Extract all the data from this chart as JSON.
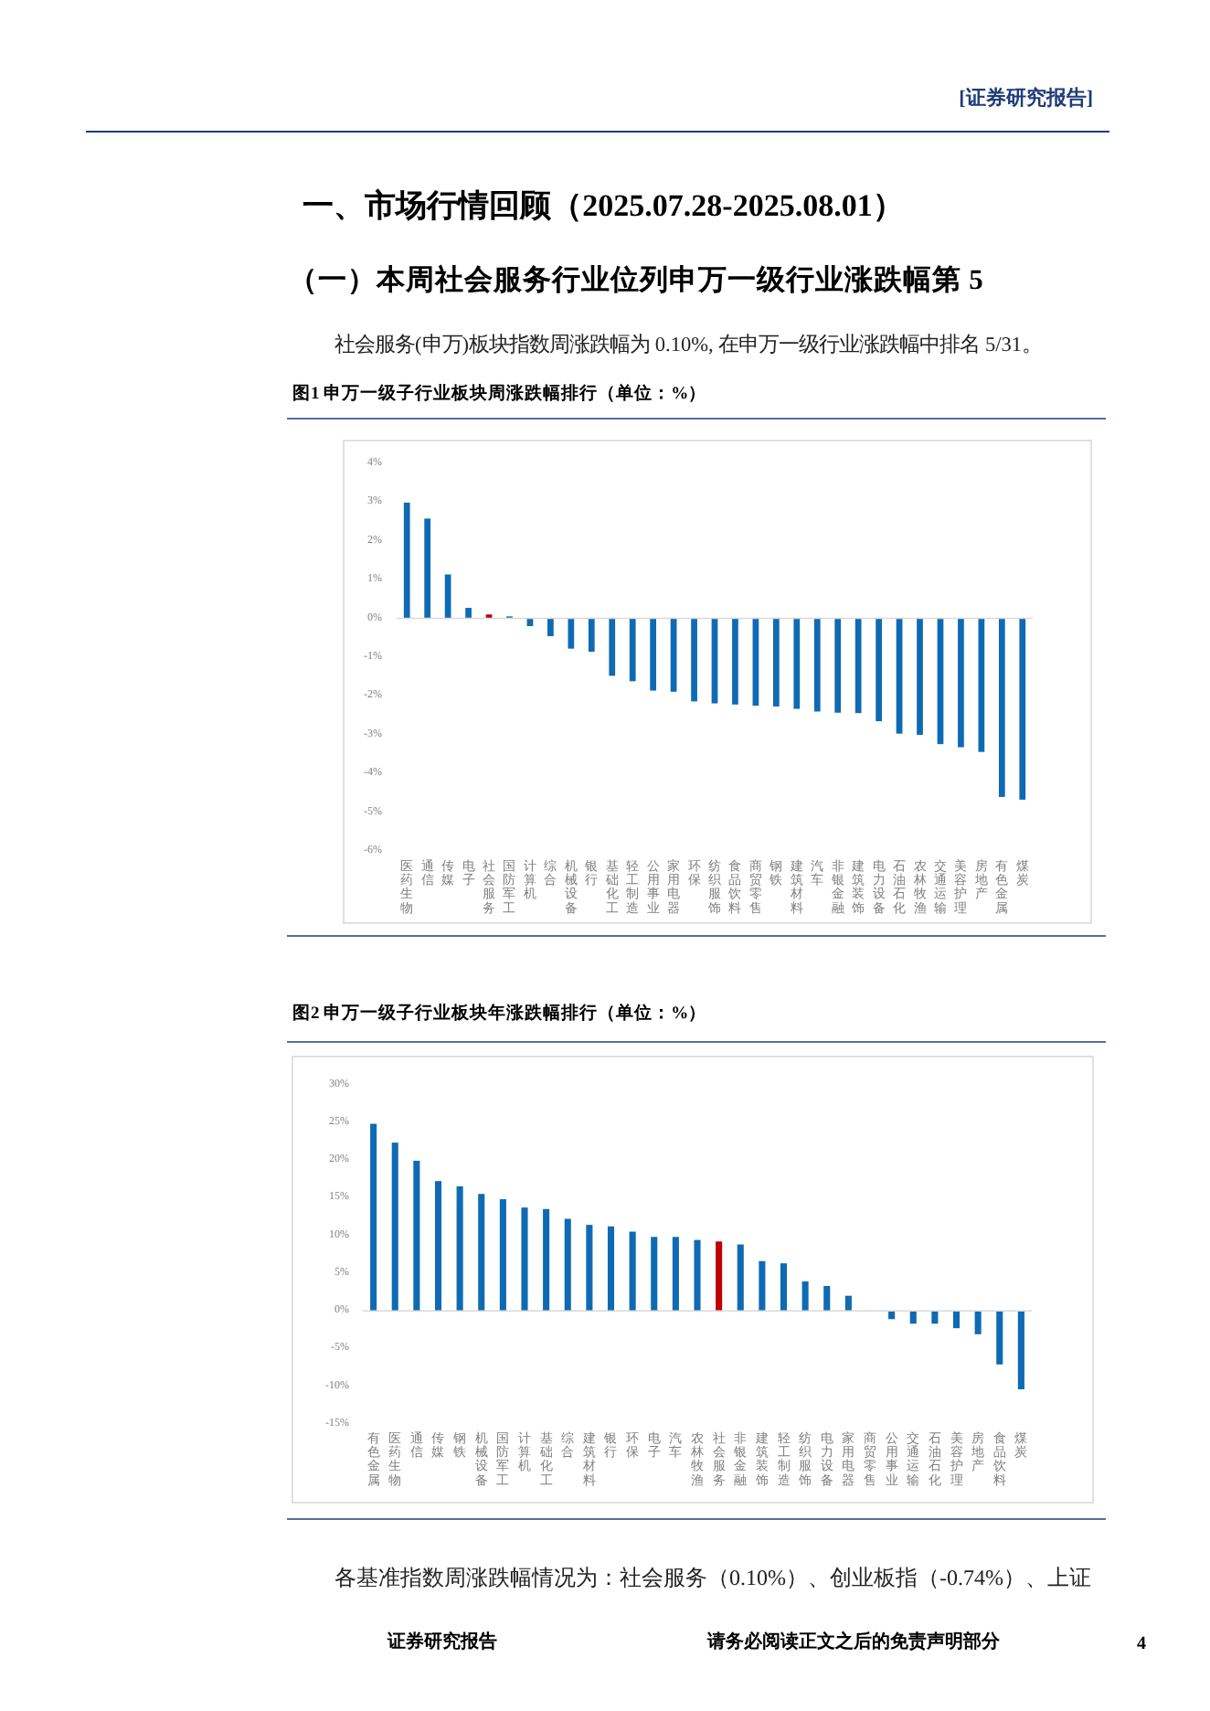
{
  "chart_data": [
    {
      "type": "bar",
      "title": "图1 申万一级子行业板块周涨跌幅排行（单位：%）",
      "annotations": [
        "[证券研究报告]",
        "一、市场行情回顾（2025.07.28-2025.08.01）",
        "（一）本周社会服务行业位列申万一级行业涨跌幅第 5",
        "社会服务(申万)板块指数周涨跌幅为 0.10%, 在申万一级行业涨跌幅中排名 5/31。"
      ],
      "categories": [
        "医药生物",
        "通信",
        "传媒",
        "电子",
        "社会服务",
        "国防军工",
        "计算机",
        "综合",
        "机械设备",
        "银行",
        "基础化工",
        "轻工制造",
        "公用事业",
        "家用电器",
        "环保",
        "纺织服饰",
        "食品饮料",
        "商贸零售",
        "钢铁",
        "建筑材料",
        "汽车",
        "非银金融",
        "建筑装饰",
        "电力设备",
        "石油石化",
        "农林牧渔",
        "交通运输",
        "美容护理",
        "房地产",
        "有色金属",
        "煤炭"
      ],
      "values": [
        2.98,
        2.57,
        1.13,
        0.27,
        0.1,
        0.05,
        -0.2,
        -0.46,
        -0.78,
        -0.86,
        -1.48,
        -1.62,
        -1.86,
        -1.89,
        -2.14,
        -2.19,
        -2.22,
        -2.25,
        -2.27,
        -2.33,
        -2.4,
        -2.43,
        -2.44,
        -2.65,
        -2.97,
        -3.0,
        -3.24,
        -3.32,
        -3.44,
        -4.6,
        -4.67
      ],
      "colors": [
        "#0f6ab4",
        "#0f6ab4",
        "#0f6ab4",
        "#0f6ab4",
        "#c00000",
        "#0f6ab4",
        "#0f6ab4",
        "#0f6ab4",
        "#0f6ab4",
        "#0f6ab4",
        "#0f6ab4",
        "#0f6ab4",
        "#0f6ab4",
        "#0f6ab4",
        "#0f6ab4",
        "#0f6ab4",
        "#0f6ab4",
        "#0f6ab4",
        "#0f6ab4",
        "#0f6ab4",
        "#0f6ab4",
        "#0f6ab4",
        "#0f6ab4",
        "#0f6ab4",
        "#0f6ab4",
        "#0f6ab4",
        "#0f6ab4",
        "#0f6ab4",
        "#0f6ab4",
        "#0f6ab4",
        "#0f6ab4"
      ],
      "ylim": [
        -6,
        4
      ],
      "yticks": [
        {
          "value": -6,
          "label": "-6%"
        },
        {
          "value": -5,
          "label": "-5%"
        },
        {
          "value": -4,
          "label": "-4%"
        },
        {
          "value": -3,
          "label": "-3%"
        },
        {
          "value": -2,
          "label": "-2%"
        },
        {
          "value": -1,
          "label": "-1%"
        },
        {
          "value": 0,
          "label": "0%"
        },
        {
          "value": 1,
          "label": "1%"
        },
        {
          "value": 2,
          "label": "2%"
        },
        {
          "value": 3,
          "label": "3%"
        },
        {
          "value": 4,
          "label": "4%"
        }
      ]
    },
    {
      "type": "bar",
      "title": "图2 申万一级子行业板块年涨跌幅排行（单位：%）",
      "annotations": [
        "各基准指数周涨跌幅情况为：社会服务（0.10%）、创业板指（-0.74%）、上证",
        "证券研究报告",
        "请务必阅读正文之后的免责声明部分",
        "4"
      ],
      "categories": [
        "有色金属",
        "医药生物",
        "通信",
        "传媒",
        "钢铁",
        "机械设备",
        "国防军工",
        "计算机",
        "基础化工",
        "综合",
        "建筑材料",
        "银行",
        "环保",
        "电子",
        "汽车",
        "农林牧渔",
        "社会服务",
        "非银金融",
        "建筑装饰",
        "轻工制造",
        "纺织服饰",
        "电力设备",
        "家用电器",
        "商贸零售",
        "公用事业",
        "交通运输",
        "石油石化",
        "美容护理",
        "房地产",
        "食品饮料",
        "煤炭"
      ],
      "values": [
        24.8,
        22.3,
        19.9,
        17.2,
        16.5,
        15.5,
        14.8,
        13.7,
        13.5,
        12.2,
        11.4,
        11.2,
        10.5,
        9.8,
        9.8,
        9.4,
        9.2,
        8.8,
        6.6,
        6.3,
        3.9,
        3.3,
        2.0,
        0,
        -1.1,
        -1.7,
        -1.7,
        -2.3,
        -3.1,
        -7.1,
        -10.4
      ],
      "colors": [
        "#0f6ab4",
        "#0f6ab4",
        "#0f6ab4",
        "#0f6ab4",
        "#0f6ab4",
        "#0f6ab4",
        "#0f6ab4",
        "#0f6ab4",
        "#0f6ab4",
        "#0f6ab4",
        "#0f6ab4",
        "#0f6ab4",
        "#0f6ab4",
        "#0f6ab4",
        "#0f6ab4",
        "#0f6ab4",
        "#c00000",
        "#0f6ab4",
        "#0f6ab4",
        "#0f6ab4",
        "#0f6ab4",
        "#0f6ab4",
        "#0f6ab4",
        "#0f6ab4",
        "#0f6ab4",
        "#0f6ab4",
        "#0f6ab4",
        "#0f6ab4",
        "#0f6ab4",
        "#0f6ab4",
        "#0f6ab4"
      ],
      "ylim": [
        -15,
        30
      ],
      "yticks": [
        {
          "value": -15,
          "label": "-15%"
        },
        {
          "value": -10,
          "label": "-10%"
        },
        {
          "value": -5,
          "label": "-5%"
        },
        {
          "value": 0,
          "label": "0%"
        },
        {
          "value": 5,
          "label": "5%"
        },
        {
          "value": 10,
          "label": "10%"
        },
        {
          "value": 15,
          "label": "15%"
        },
        {
          "value": 20,
          "label": "20%"
        },
        {
          "value": 25,
          "label": "25%"
        },
        {
          "value": 30,
          "label": "30%"
        }
      ]
    }
  ]
}
